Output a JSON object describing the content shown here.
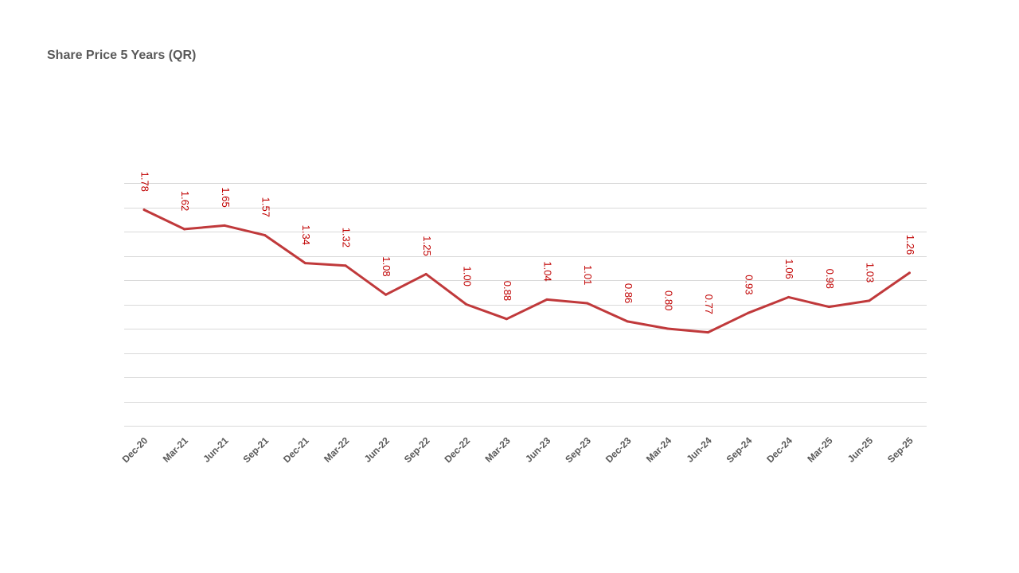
{
  "chart_data": {
    "type": "line",
    "title": "Share Price 5 Years (QR)",
    "xlabel": "",
    "ylabel": "",
    "categories": [
      "Dec-20",
      "Mar-21",
      "Jun-21",
      "Sep-21",
      "Dec-21",
      "Mar-22",
      "Jun-22",
      "Sep-22",
      "Dec-22",
      "Mar-23",
      "Jun-23",
      "Sep-23",
      "Dec-23",
      "Mar-24",
      "Jun-24",
      "Sep-24",
      "Dec-24",
      "Mar-25",
      "Jun-25",
      "Sep-25"
    ],
    "series": [
      {
        "values": [
          1.78,
          1.62,
          1.65,
          1.57,
          1.34,
          1.32,
          1.08,
          1.25,
          1.0,
          0.88,
          1.04,
          1.01,
          0.86,
          0.8,
          0.77,
          0.93,
          1.06,
          0.98,
          1.03,
          1.26
        ],
        "labels": [
          "1.78",
          "1.62",
          "1.65",
          "1.57",
          "1.34",
          "1.32",
          "1.08",
          "1.25",
          "1.00",
          "0.88",
          "1.04",
          "1.01",
          "0.86",
          "0.80",
          "0.77",
          "0.93",
          "1.06",
          "0.98",
          "1.03",
          "1.26"
        ]
      }
    ],
    "ylim": [
      0,
      2.0
    ],
    "grid": true,
    "legend": "none",
    "colors": {
      "line": "#c0393b",
      "data_label": "#c00000",
      "grid": "#d9d9d9",
      "tick_label": "#595959",
      "title": "#595959"
    }
  }
}
